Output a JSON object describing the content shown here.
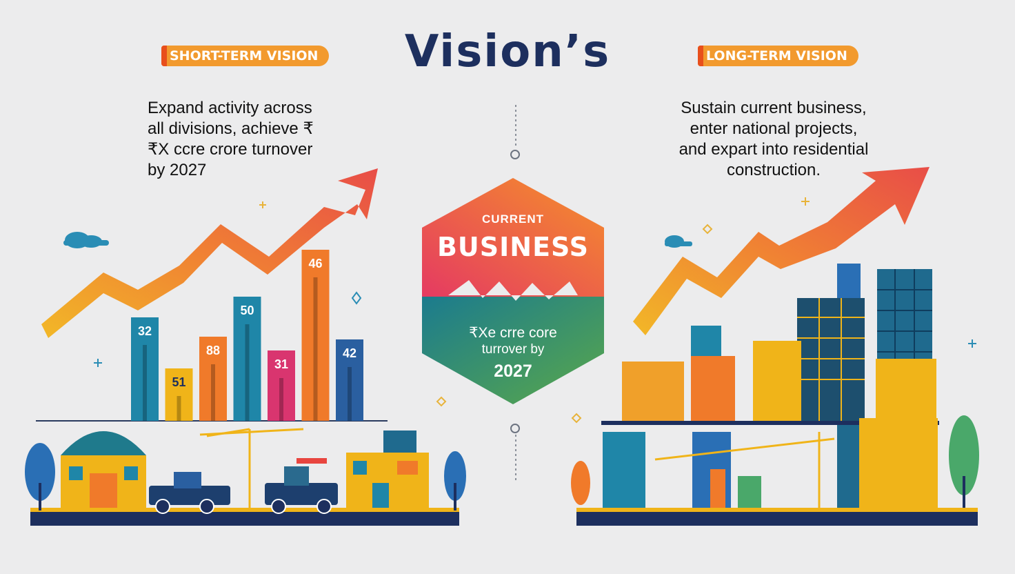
{
  "title": "Vision’s",
  "short_term": {
    "tag": "SHORT-TERM VISION",
    "description": "Expand activity across\n all divisions, achieve ₹\n₹X ccre crore turnover\nby 2027"
  },
  "long_term": {
    "tag": "LONG-TERM VISION",
    "description": "Sustain current business,\nenter national projects,\nand expart into residential\nconstruction."
  },
  "center_badge": {
    "small_label": "CURRENT",
    "big_label": "BUSINESS",
    "line1": "₹Xe crre core",
    "line2": "turrover by",
    "line3": "2027"
  },
  "chart_data": {
    "type": "bar",
    "categories": [
      "",
      "",
      "",
      "",
      "",
      "",
      ""
    ],
    "values": [
      32,
      51,
      88,
      50,
      31,
      46,
      42
    ],
    "bar_labels": [
      "32",
      "51",
      "88",
      "50",
      "31",
      "46",
      "42"
    ],
    "colors": [
      "#1f86a8",
      "#f0b419",
      "#f07a2a",
      "#1f86a8",
      "#d9356f",
      "#f07a2a",
      "#2a5fa0"
    ],
    "title": "",
    "xlabel": "",
    "ylabel": ""
  },
  "colors": {
    "navy": "#1d2f5e",
    "orange": "#f29a2e",
    "red": "#e84c3d",
    "teal": "#1f86a8",
    "green": "#4aa86a"
  }
}
